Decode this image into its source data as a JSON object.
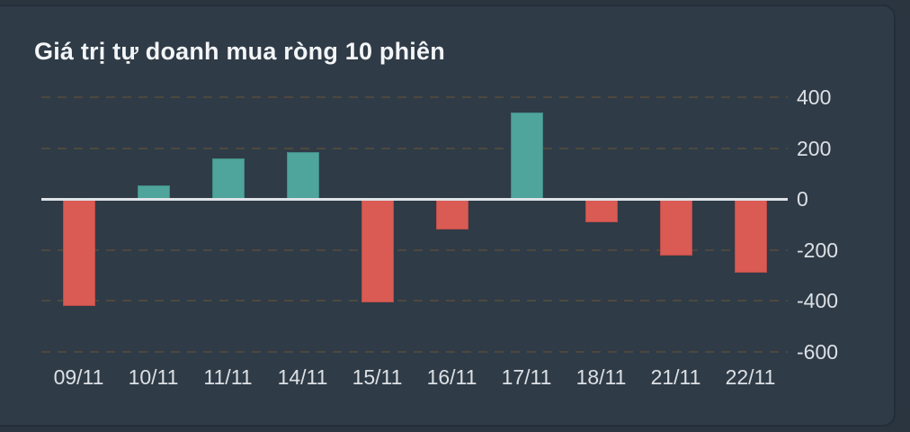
{
  "colors": {
    "page_bg": "#2b3540",
    "panel_bg": "#2f3b47",
    "panel_border": "#242e38",
    "positive": "#4fa49b",
    "negative": "#d95b54",
    "zero_line": "#dfe3e8",
    "gridline": "#4d483e",
    "title_text": "#f3f5f7",
    "axis_text": "#dce0e5"
  },
  "chart_data": {
    "type": "bar",
    "title": "Giá trị tự doanh mua ròng 10 phiên",
    "categories": [
      "09/11",
      "10/11",
      "11/11",
      "14/11",
      "15/11",
      "16/11",
      "17/11",
      "18/11",
      "21/11",
      "22/11"
    ],
    "values": [
      -420,
      55,
      160,
      185,
      -405,
      -120,
      340,
      -90,
      -220,
      -290
    ],
    "yticks": [
      400,
      200,
      0,
      -200,
      -400,
      -600
    ],
    "ylim": [
      -646,
      444
    ],
    "xlabel": "",
    "ylabel": "",
    "legend": false,
    "grid": "dashed-horizontal-right-axis-labels",
    "positive_color": "#4fa49b",
    "negative_color": "#d95b54"
  }
}
